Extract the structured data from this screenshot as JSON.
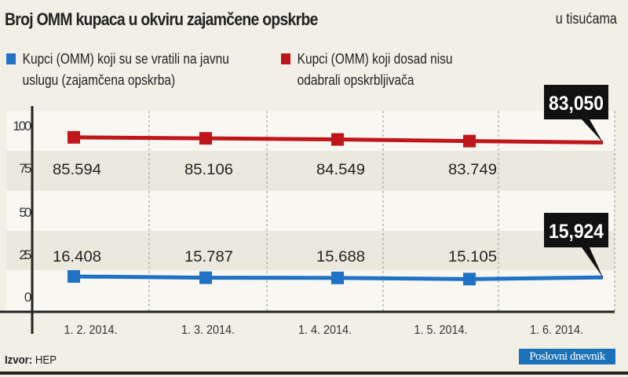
{
  "header": {
    "title": "Broj OMM kupaca u okviru zajamčene opskrbe",
    "unit": "u tisućama"
  },
  "legend": [
    {
      "line1": "Kupci (OMM) koji su se vratili na javnu",
      "line2": "uslugu (zajamčena opskrba)",
      "color": "#1f72c4"
    },
    {
      "line1": "Kupci (OMM) koji dosad nisu",
      "line2": "odabrali opskrbljivača",
      "color": "#c0161b"
    }
  ],
  "chart_data": {
    "type": "line",
    "title": "Broj OMM kupaca u okviru zajamčene opskrbe",
    "ylabel": "u tisućama",
    "ylim": [
      0,
      100
    ],
    "yticks": [
      "100",
      "75",
      "50",
      "25",
      "0"
    ],
    "categories": [
      "1. 2. 2014.",
      "1. 3. 2014.",
      "1. 4. 2014.",
      "1. 5. 2014.",
      "1. 6. 2014."
    ],
    "series": [
      {
        "name": "Kupci (OMM) koji su se vratili na javnu uslugu (zajamčena opskrba)",
        "color": "#1f72c4",
        "values": [
          16.408,
          15.787,
          15.688,
          15.105,
          15.924
        ],
        "labels": [
          "16.408",
          "15.787",
          "15.688",
          "15.105",
          "15,924"
        ]
      },
      {
        "name": "Kupci (OMM) koji dosad nisu odabrali opskrbljivača",
        "color": "#c0161b",
        "values": [
          85.594,
          85.106,
          84.549,
          83.749,
          83.05
        ],
        "labels": [
          "85.594",
          "85.106",
          "84.549",
          "83.749",
          "83,050"
        ]
      }
    ],
    "grid": true
  },
  "footer": {
    "source_label": "Izvor:",
    "source": "HEP",
    "logo": "Poslovni dnevnik"
  }
}
